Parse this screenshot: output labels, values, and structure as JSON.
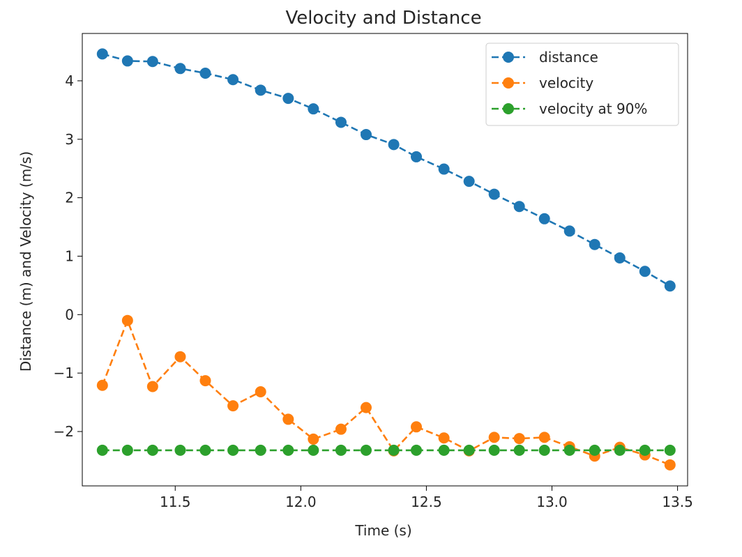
{
  "chart_data": {
    "type": "line",
    "title": "Velocity and Distance",
    "xlabel": "Time (s)",
    "ylabel": "Distance (m) and Velocity (m/s)",
    "xlim": [
      11.13,
      13.54
    ],
    "ylim": [
      -2.93,
      4.81
    ],
    "xticks": [
      11.5,
      12.0,
      12.5,
      13.0,
      13.5
    ],
    "xtick_labels": [
      "11.5",
      "12.0",
      "12.5",
      "13.0",
      "13.5"
    ],
    "yticks": [
      -2,
      -1,
      0,
      1,
      2,
      3,
      4
    ],
    "ytick_labels": [
      "−2",
      "−1",
      "0",
      "1",
      "2",
      "3",
      "4"
    ],
    "grid": false,
    "legend_position": "top-right",
    "x": [
      11.21,
      11.31,
      11.41,
      11.52,
      11.62,
      11.73,
      11.84,
      11.95,
      12.05,
      12.16,
      12.26,
      12.37,
      12.46,
      12.57,
      12.67,
      12.77,
      12.87,
      12.97,
      13.07,
      13.17,
      13.27,
      13.37,
      13.47
    ],
    "series": [
      {
        "name": "distance",
        "color": "#1f77b4",
        "linestyle": "dashed",
        "marker": "circle",
        "values": [
          4.46,
          4.34,
          4.33,
          4.21,
          4.13,
          4.02,
          3.84,
          3.7,
          3.52,
          3.29,
          3.08,
          2.91,
          2.7,
          2.49,
          2.28,
          2.06,
          1.85,
          1.64,
          1.43,
          1.2,
          0.97,
          0.74,
          0.49
        ]
      },
      {
        "name": "velocity",
        "color": "#ff7f0e",
        "linestyle": "dashed",
        "marker": "circle",
        "values": [
          -1.21,
          -0.1,
          -1.23,
          -0.72,
          -1.13,
          -1.56,
          -1.32,
          -1.79,
          -2.13,
          -1.96,
          -1.59,
          -2.33,
          -1.92,
          -2.11,
          -2.33,
          -2.1,
          -2.12,
          -2.1,
          -2.26,
          -2.42,
          -2.27,
          -2.4,
          -2.57
        ]
      },
      {
        "name": "velocity at 90%",
        "color": "#2ca02c",
        "linestyle": "dashed",
        "marker": "circle",
        "values": [
          -2.32,
          -2.32,
          -2.32,
          -2.32,
          -2.32,
          -2.32,
          -2.32,
          -2.32,
          -2.32,
          -2.32,
          -2.32,
          -2.32,
          -2.32,
          -2.32,
          -2.32,
          -2.32,
          -2.32,
          -2.32,
          -2.32,
          -2.32,
          -2.32,
          -2.32,
          -2.32
        ]
      }
    ]
  }
}
